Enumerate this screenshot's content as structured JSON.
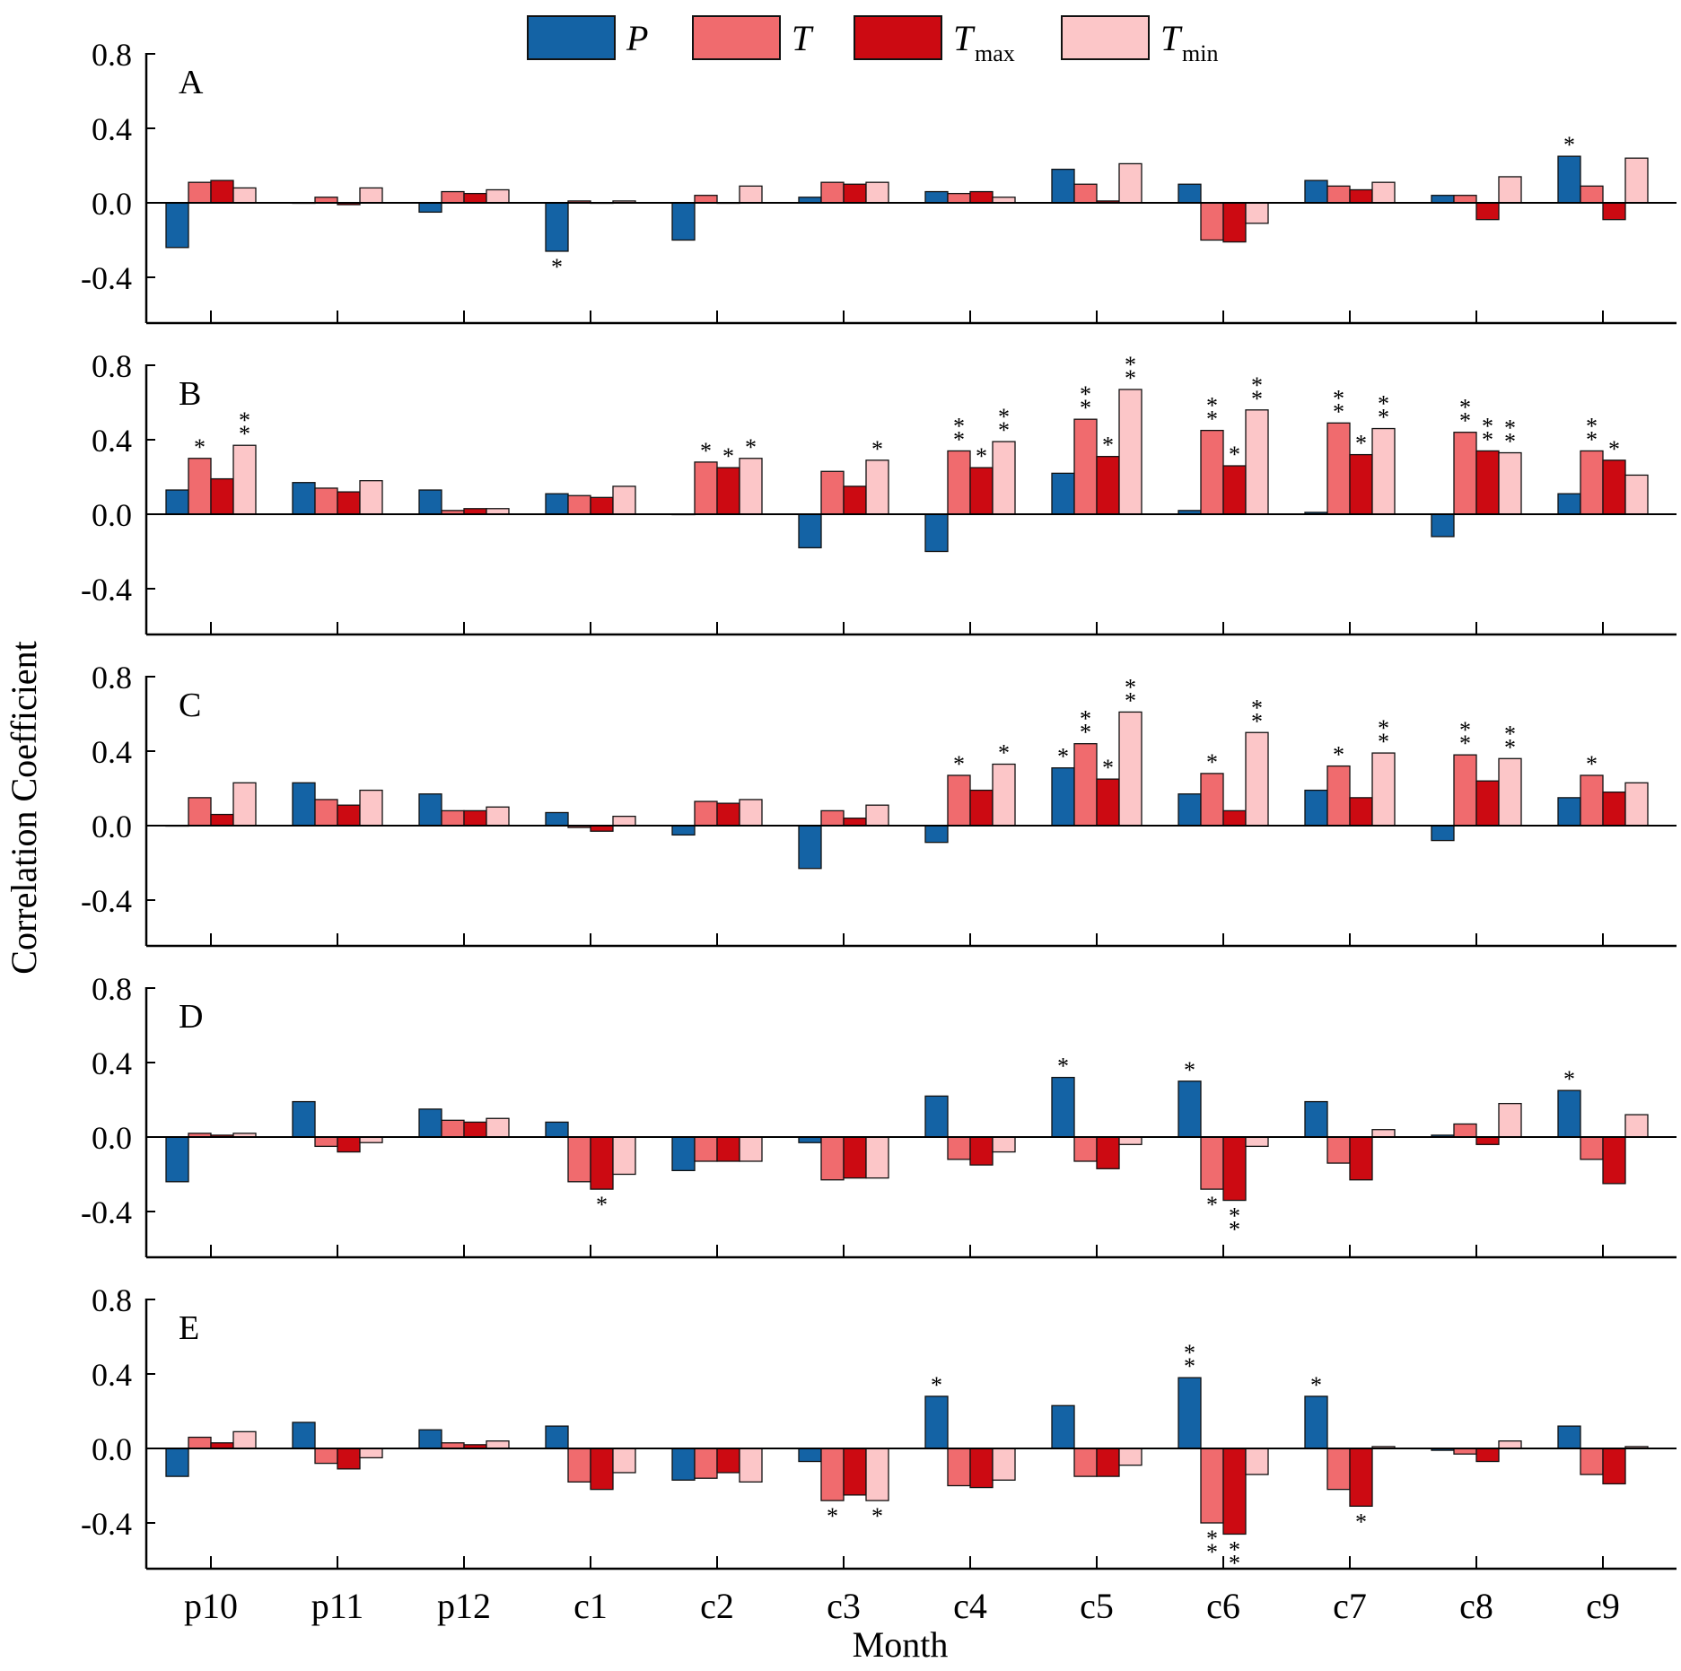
{
  "colors": {
    "P": "#1463a5",
    "T": "#f06b6e",
    "Tmax": "#cc0a12",
    "Tmin": "#fcc6c8"
  },
  "legend": [
    {
      "key": "P",
      "label": "P",
      "sub": ""
    },
    {
      "key": "T",
      "label": "T",
      "sub": ""
    },
    {
      "key": "Tmax",
      "label": "T",
      "sub": "max"
    },
    {
      "key": "Tmin",
      "label": "T",
      "sub": "min"
    }
  ],
  "chart_data": {
    "type": "bar",
    "categories": [
      "p10",
      "p11",
      "p12",
      "c1",
      "c2",
      "c3",
      "c4",
      "c5",
      "c6",
      "c7",
      "c8",
      "c9"
    ],
    "xlabel": "Month",
    "ylabel": "Correlation Coefficient",
    "ylim": [
      -0.65,
      0.8
    ],
    "yticks": [
      0.8,
      0.4,
      0.0,
      -0.4
    ],
    "ytick_labels": [
      "0.8",
      "0.4",
      "0.0",
      "-0.4"
    ],
    "series_keys": [
      "P",
      "T",
      "Tmax",
      "Tmin"
    ],
    "panels": [
      {
        "label": "A",
        "series": [
          {
            "name": "P",
            "values": [
              -0.24,
              0.0,
              -0.05,
              -0.26,
              -0.2,
              0.03,
              0.06,
              0.18,
              0.1,
              0.12,
              0.04,
              0.25
            ]
          },
          {
            "name": "T",
            "values": [
              0.11,
              0.03,
              0.06,
              0.01,
              0.04,
              0.11,
              0.05,
              0.1,
              -0.2,
              0.09,
              0.04,
              0.09
            ]
          },
          {
            "name": "Tmax",
            "values": [
              0.12,
              -0.01,
              0.05,
              0.0,
              0.0,
              0.1,
              0.06,
              0.01,
              -0.21,
              0.07,
              -0.09,
              -0.09
            ]
          },
          {
            "name": "Tmin",
            "values": [
              0.08,
              0.08,
              0.07,
              0.01,
              0.09,
              0.11,
              0.03,
              0.21,
              -0.11,
              0.11,
              0.14,
              0.24
            ]
          }
        ],
        "annotations": [
          {
            "cat": 3,
            "series": 0,
            "text": "*"
          },
          {
            "cat": 11,
            "series": 0,
            "text": "*"
          }
        ]
      },
      {
        "label": "B",
        "series": [
          {
            "name": "P",
            "values": [
              0.13,
              0.17,
              0.13,
              0.11,
              0.0,
              -0.18,
              -0.2,
              0.22,
              0.02,
              0.01,
              -0.12,
              0.11
            ]
          },
          {
            "name": "T",
            "values": [
              0.3,
              0.14,
              0.02,
              0.1,
              0.28,
              0.23,
              0.34,
              0.51,
              0.45,
              0.49,
              0.44,
              0.34
            ]
          },
          {
            "name": "Tmax",
            "values": [
              0.19,
              0.12,
              0.03,
              0.09,
              0.25,
              0.15,
              0.25,
              0.31,
              0.26,
              0.32,
              0.34,
              0.29
            ]
          },
          {
            "name": "Tmin",
            "values": [
              0.37,
              0.18,
              0.03,
              0.15,
              0.3,
              0.29,
              0.39,
              0.67,
              0.56,
              0.46,
              0.33,
              0.21
            ]
          }
        ],
        "annotations": [
          {
            "cat": 0,
            "series": 1,
            "text": "*"
          },
          {
            "cat": 0,
            "series": 3,
            "text": "**"
          },
          {
            "cat": 4,
            "series": 1,
            "text": "*"
          },
          {
            "cat": 4,
            "series": 2,
            "text": "*"
          },
          {
            "cat": 4,
            "series": 3,
            "text": "*"
          },
          {
            "cat": 5,
            "series": 3,
            "text": "*"
          },
          {
            "cat": 6,
            "series": 1,
            "text": "**"
          },
          {
            "cat": 6,
            "series": 2,
            "text": "*"
          },
          {
            "cat": 6,
            "series": 3,
            "text": "**"
          },
          {
            "cat": 7,
            "series": 1,
            "text": "**"
          },
          {
            "cat": 7,
            "series": 2,
            "text": "*"
          },
          {
            "cat": 7,
            "series": 3,
            "text": "**"
          },
          {
            "cat": 8,
            "series": 1,
            "text": "**"
          },
          {
            "cat": 8,
            "series": 2,
            "text": "*"
          },
          {
            "cat": 8,
            "series": 3,
            "text": "**"
          },
          {
            "cat": 9,
            "series": 1,
            "text": "**"
          },
          {
            "cat": 9,
            "series": 2,
            "text": "*"
          },
          {
            "cat": 9,
            "series": 3,
            "text": "**"
          },
          {
            "cat": 10,
            "series": 1,
            "text": "**"
          },
          {
            "cat": 10,
            "series": 2,
            "text": "**"
          },
          {
            "cat": 10,
            "series": 3,
            "text": "**"
          },
          {
            "cat": 11,
            "series": 1,
            "text": "**"
          },
          {
            "cat": 11,
            "series": 2,
            "text": "*"
          }
        ]
      },
      {
        "label": "C",
        "series": [
          {
            "name": "P",
            "values": [
              0.0,
              0.23,
              0.17,
              0.07,
              -0.05,
              -0.23,
              -0.09,
              0.31,
              0.17,
              0.19,
              -0.08,
              0.15
            ]
          },
          {
            "name": "T",
            "values": [
              0.15,
              0.14,
              0.08,
              -0.01,
              0.13,
              0.08,
              0.27,
              0.44,
              0.28,
              0.32,
              0.38,
              0.27
            ]
          },
          {
            "name": "Tmax",
            "values": [
              0.06,
              0.11,
              0.08,
              -0.03,
              0.12,
              0.04,
              0.19,
              0.25,
              0.08,
              0.15,
              0.24,
              0.18
            ]
          },
          {
            "name": "Tmin",
            "values": [
              0.23,
              0.19,
              0.1,
              0.05,
              0.14,
              0.11,
              0.33,
              0.61,
              0.5,
              0.39,
              0.36,
              0.23
            ]
          }
        ],
        "annotations": [
          {
            "cat": 6,
            "series": 1,
            "text": "*"
          },
          {
            "cat": 6,
            "series": 3,
            "text": "*"
          },
          {
            "cat": 7,
            "series": 0,
            "text": "*"
          },
          {
            "cat": 7,
            "series": 1,
            "text": "**"
          },
          {
            "cat": 7,
            "series": 2,
            "text": "*"
          },
          {
            "cat": 7,
            "series": 3,
            "text": "**"
          },
          {
            "cat": 8,
            "series": 1,
            "text": "*"
          },
          {
            "cat": 8,
            "series": 3,
            "text": "**"
          },
          {
            "cat": 9,
            "series": 1,
            "text": "*"
          },
          {
            "cat": 9,
            "series": 3,
            "text": "**"
          },
          {
            "cat": 10,
            "series": 1,
            "text": "**"
          },
          {
            "cat": 10,
            "series": 3,
            "text": "**"
          },
          {
            "cat": 11,
            "series": 1,
            "text": "*"
          }
        ]
      },
      {
        "label": "D",
        "series": [
          {
            "name": "P",
            "values": [
              -0.24,
              0.19,
              0.15,
              0.08,
              -0.18,
              -0.03,
              0.22,
              0.32,
              0.3,
              0.19,
              0.01,
              0.25
            ]
          },
          {
            "name": "T",
            "values": [
              0.02,
              -0.05,
              0.09,
              -0.24,
              -0.13,
              -0.23,
              -0.12,
              -0.13,
              -0.28,
              -0.14,
              0.07,
              -0.12
            ]
          },
          {
            "name": "Tmax",
            "values": [
              0.01,
              -0.08,
              0.08,
              -0.28,
              -0.13,
              -0.22,
              -0.15,
              -0.17,
              -0.34,
              -0.23,
              -0.04,
              -0.25
            ]
          },
          {
            "name": "Tmin",
            "values": [
              0.02,
              -0.03,
              0.1,
              -0.2,
              -0.13,
              -0.22,
              -0.08,
              -0.04,
              -0.05,
              0.04,
              0.18,
              0.12
            ]
          }
        ],
        "annotations": [
          {
            "cat": 3,
            "series": 2,
            "text": "*"
          },
          {
            "cat": 7,
            "series": 0,
            "text": "*"
          },
          {
            "cat": 8,
            "series": 0,
            "text": "*"
          },
          {
            "cat": 8,
            "series": 1,
            "text": "*"
          },
          {
            "cat": 8,
            "series": 2,
            "text": "**"
          },
          {
            "cat": 11,
            "series": 0,
            "text": "*"
          }
        ]
      },
      {
        "label": "E",
        "series": [
          {
            "name": "P",
            "values": [
              -0.15,
              0.14,
              0.1,
              0.12,
              -0.17,
              -0.07,
              0.28,
              0.23,
              0.38,
              0.28,
              -0.01,
              0.12
            ]
          },
          {
            "name": "T",
            "values": [
              0.06,
              -0.08,
              0.03,
              -0.18,
              -0.16,
              -0.28,
              -0.2,
              -0.15,
              -0.4,
              -0.22,
              -0.03,
              -0.14
            ]
          },
          {
            "name": "Tmax",
            "values": [
              0.03,
              -0.11,
              0.02,
              -0.22,
              -0.13,
              -0.25,
              -0.21,
              -0.15,
              -0.46,
              -0.31,
              -0.07,
              -0.19
            ]
          },
          {
            "name": "Tmin",
            "values": [
              0.09,
              -0.05,
              0.04,
              -0.13,
              -0.18,
              -0.28,
              -0.17,
              -0.09,
              -0.14,
              0.01,
              0.04,
              0.01
            ]
          }
        ],
        "annotations": [
          {
            "cat": 5,
            "series": 1,
            "text": "*"
          },
          {
            "cat": 5,
            "series": 3,
            "text": "*"
          },
          {
            "cat": 6,
            "series": 0,
            "text": "*"
          },
          {
            "cat": 8,
            "series": 0,
            "text": "**"
          },
          {
            "cat": 8,
            "series": 1,
            "text": "**"
          },
          {
            "cat": 8,
            "series": 2,
            "text": "**"
          },
          {
            "cat": 9,
            "series": 0,
            "text": "*"
          },
          {
            "cat": 9,
            "series": 2,
            "text": "*"
          }
        ]
      }
    ]
  }
}
